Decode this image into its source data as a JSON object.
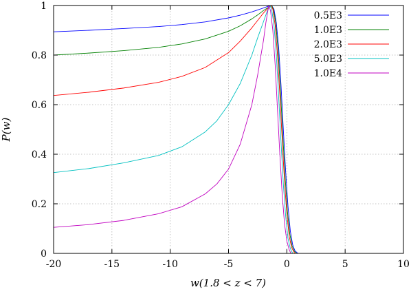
{
  "chart_data": {
    "type": "line",
    "xlabel": "w(1.8 < z < 7)",
    "ylabel": "P(w)",
    "xlim": [
      -20,
      10
    ],
    "ylim": [
      0,
      1
    ],
    "x_ticks": [
      -20,
      -15,
      -10,
      -5,
      0,
      5,
      10
    ],
    "x_tick_labels": [
      "-20",
      "-15",
      "-10",
      "-5",
      "0",
      "5",
      "10"
    ],
    "y_ticks": [
      0,
      0.2,
      0.4,
      0.6,
      0.8,
      1
    ],
    "y_tick_labels": [
      "0",
      "0.2",
      "0.4",
      "0.6",
      "0.8",
      "1"
    ],
    "grid": true,
    "legend_position": "top-right",
    "series": [
      {
        "name": "0.5E3",
        "color": "#0000ff",
        "x": [
          -20,
          -17,
          -14,
          -11,
          -9,
          -7,
          -5,
          -4,
          -3,
          -2.5,
          -2,
          -1.6,
          -1.3,
          -1.1,
          -0.9,
          -0.7,
          -0.5,
          -0.3,
          -0.1,
          0.1,
          0.3,
          0.5,
          0.7,
          0.9,
          1.0
        ],
        "y": [
          0.894,
          0.9,
          0.907,
          0.915,
          0.923,
          0.934,
          0.95,
          0.961,
          0.974,
          0.982,
          0.99,
          0.997,
          1.0,
          0.985,
          0.93,
          0.83,
          0.68,
          0.5,
          0.33,
          0.19,
          0.09,
          0.035,
          0.01,
          0.002,
          0
        ]
      },
      {
        "name": "1.0E3",
        "color": "#008000",
        "x": [
          -20,
          -17,
          -14,
          -11,
          -9,
          -7,
          -5,
          -4,
          -3,
          -2.5,
          -2,
          -1.6,
          -1.3,
          -1.15,
          -0.95,
          -0.75,
          -0.55,
          -0.35,
          -0.15,
          0.05,
          0.25,
          0.45,
          0.65,
          0.85
        ],
        "y": [
          0.8,
          0.808,
          0.818,
          0.831,
          0.845,
          0.865,
          0.896,
          0.918,
          0.946,
          0.962,
          0.98,
          0.992,
          1.0,
          0.985,
          0.93,
          0.82,
          0.66,
          0.48,
          0.31,
          0.17,
          0.08,
          0.03,
          0.008,
          0
        ]
      },
      {
        "name": "2.0E3",
        "color": "#ff0000",
        "x": [
          -20,
          -17,
          -14,
          -11,
          -9,
          -7,
          -5,
          -4,
          -3,
          -2.5,
          -2,
          -1.6,
          -1.35,
          -1.2,
          -1.0,
          -0.8,
          -0.6,
          -0.4,
          -0.2,
          0.0,
          0.2,
          0.4,
          0.6,
          0.7
        ],
        "y": [
          0.637,
          0.65,
          0.667,
          0.69,
          0.714,
          0.75,
          0.81,
          0.856,
          0.91,
          0.94,
          0.97,
          0.99,
          1.0,
          0.985,
          0.92,
          0.8,
          0.64,
          0.46,
          0.29,
          0.16,
          0.07,
          0.025,
          0.006,
          0
        ]
      },
      {
        "name": "5.0E3",
        "color": "#00c0c0",
        "x": [
          -20,
          -17,
          -14,
          -11,
          -9,
          -7,
          -6,
          -5,
          -4,
          -3,
          -2.5,
          -2,
          -1.7,
          -1.45,
          -1.3,
          -1.1,
          -0.9,
          -0.7,
          -0.5,
          -0.3,
          -0.1,
          0.1,
          0.3,
          0.5
        ],
        "y": [
          0.326,
          0.342,
          0.365,
          0.395,
          0.43,
          0.49,
          0.535,
          0.6,
          0.685,
          0.8,
          0.87,
          0.935,
          0.975,
          1.0,
          0.985,
          0.92,
          0.8,
          0.63,
          0.45,
          0.28,
          0.15,
          0.06,
          0.02,
          0
        ]
      },
      {
        "name": "1.0E4",
        "color": "#c000c0",
        "x": [
          -20,
          -17,
          -14,
          -11,
          -9,
          -7,
          -6,
          -5,
          -4,
          -3,
          -2.5,
          -2,
          -1.8,
          -1.55,
          -1.4,
          -1.2,
          -1.0,
          -0.8,
          -0.6,
          -0.4,
          -0.2,
          0.0,
          0.2,
          0.35
        ],
        "y": [
          0.105,
          0.116,
          0.133,
          0.16,
          0.188,
          0.24,
          0.28,
          0.34,
          0.44,
          0.6,
          0.72,
          0.86,
          0.93,
          1.0,
          0.98,
          0.9,
          0.76,
          0.58,
          0.4,
          0.24,
          0.12,
          0.05,
          0.015,
          0
        ]
      }
    ]
  }
}
